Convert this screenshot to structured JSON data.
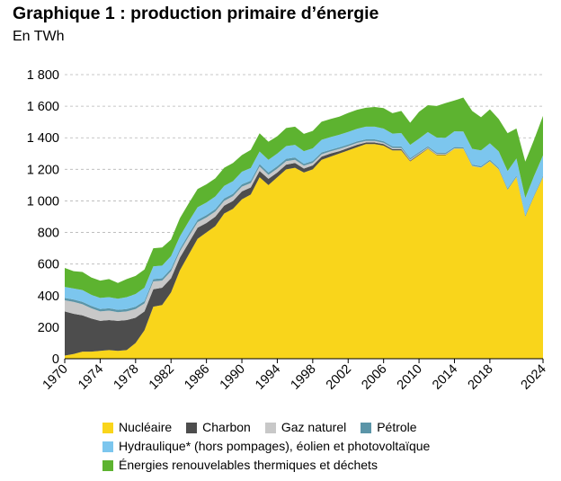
{
  "title": "Graphique 1 : production primaire d’énergie",
  "subtitle": "En TWh",
  "chart_data": {
    "type": "area",
    "stacked": true,
    "x": [
      1970,
      1971,
      1972,
      1973,
      1974,
      1975,
      1976,
      1977,
      1978,
      1979,
      1980,
      1981,
      1982,
      1983,
      1984,
      1985,
      1986,
      1987,
      1988,
      1989,
      1990,
      1991,
      1992,
      1993,
      1994,
      1995,
      1996,
      1997,
      1998,
      1999,
      2000,
      2001,
      2002,
      2003,
      2004,
      2005,
      2006,
      2007,
      2008,
      2009,
      2010,
      2011,
      2012,
      2013,
      2014,
      2015,
      2016,
      2017,
      2018,
      2019,
      2020,
      2021,
      2022,
      2023,
      2024
    ],
    "x_ticks": [
      "1970",
      "1974",
      "1978",
      "1982",
      "1986",
      "1990",
      "1994",
      "1998",
      "2002",
      "2006",
      "2010",
      "2014",
      "2018",
      "2024"
    ],
    "y_ticks": [
      "0",
      "200",
      "400",
      "600",
      "800",
      "1 000",
      "1 200",
      "1 400",
      "1 600",
      "1 800"
    ],
    "ylim": [
      0,
      1800
    ],
    "grid": "horizontal dashed",
    "legend_position": "bottom",
    "series": [
      {
        "name": "Nucléaire",
        "color": "#f9d51b",
        "values": [
          20,
          30,
          45,
          45,
          50,
          55,
          50,
          55,
          100,
          180,
          330,
          340,
          420,
          560,
          660,
          760,
          800,
          840,
          920,
          950,
          1010,
          1040,
          1150,
          1100,
          1150,
          1200,
          1210,
          1180,
          1200,
          1260,
          1280,
          1300,
          1320,
          1340,
          1360,
          1360,
          1350,
          1320,
          1320,
          1250,
          1290,
          1330,
          1290,
          1290,
          1330,
          1330,
          1220,
          1210,
          1250,
          1200,
          1070,
          1150,
          900,
          1030,
          1150
        ]
      },
      {
        "name": "Charbon",
        "color": "#4d4d4d",
        "values": [
          280,
          255,
          230,
          210,
          190,
          190,
          190,
          190,
          160,
          120,
          110,
          110,
          90,
          80,
          75,
          70,
          60,
          60,
          50,
          50,
          50,
          45,
          40,
          40,
          30,
          30,
          30,
          25,
          25,
          20,
          20,
          15,
          15,
          15,
          10,
          10,
          10,
          8,
          8,
          5,
          5,
          3,
          3,
          3,
          0,
          0,
          0,
          0,
          0,
          0,
          0,
          0,
          0,
          0,
          0
        ]
      },
      {
        "name": "Gaz naturel",
        "color": "#c8c8c8",
        "values": [
          70,
          75,
          70,
          65,
          60,
          60,
          55,
          55,
          55,
          50,
          50,
          45,
          45,
          40,
          40,
          35,
          35,
          33,
          30,
          30,
          30,
          28,
          28,
          25,
          25,
          22,
          20,
          18,
          16,
          15,
          14,
          14,
          12,
          12,
          10,
          10,
          8,
          8,
          7,
          7,
          6,
          5,
          5,
          4,
          3,
          2,
          2,
          2,
          2,
          1,
          1,
          1,
          1,
          1,
          1
        ]
      },
      {
        "name": "Pétrole",
        "color": "#5b95a8",
        "values": [
          15,
          15,
          15,
          15,
          15,
          15,
          15,
          15,
          15,
          15,
          15,
          15,
          15,
          15,
          15,
          15,
          15,
          15,
          15,
          15,
          15,
          15,
          15,
          15,
          15,
          15,
          15,
          12,
          12,
          12,
          10,
          10,
          10,
          10,
          10,
          10,
          10,
          10,
          10,
          8,
          8,
          8,
          8,
          8,
          8,
          8,
          8,
          8,
          8,
          8,
          8,
          8,
          8,
          8,
          8
        ]
      },
      {
        "name": "Hydraulique* (hors pompages), éolien et photovoltaïque",
        "color": "#7cc6ee",
        "values": [
          70,
          70,
          75,
          70,
          70,
          70,
          70,
          75,
          80,
          85,
          80,
          80,
          80,
          80,
          80,
          80,
          80,
          80,
          80,
          80,
          80,
          80,
          80,
          80,
          80,
          80,
          80,
          80,
          80,
          80,
          80,
          80,
          80,
          80,
          80,
          80,
          80,
          80,
          85,
          85,
          85,
          90,
          95,
          95,
          100,
          100,
          100,
          100,
          105,
          105,
          110,
          110,
          110,
          120,
          130
        ]
      },
      {
        "name": "Énergies renouvelables thermiques et déchets",
        "color": "#5db330",
        "values": [
          120,
          110,
          115,
          110,
          110,
          115,
          100,
          115,
          115,
          115,
          115,
          115,
          105,
          115,
          115,
          115,
          115,
          115,
          115,
          115,
          105,
          115,
          115,
          115,
          110,
          115,
          115,
          110,
          110,
          115,
          115,
          115,
          120,
          120,
          120,
          125,
          130,
          130,
          140,
          140,
          170,
          170,
          200,
          220,
          195,
          215,
          240,
          210,
          215,
          205,
          240,
          190,
          230,
          230,
          250
        ]
      }
    ]
  },
  "legend": {
    "row1": [
      "Nucléaire",
      "Charbon",
      "Gaz naturel",
      "Pétrole"
    ],
    "row2": [
      "Hydraulique* (hors pompages), éolien et photovoltaïque"
    ],
    "row3": [
      "Énergies renouvelables thermiques et déchets"
    ]
  }
}
